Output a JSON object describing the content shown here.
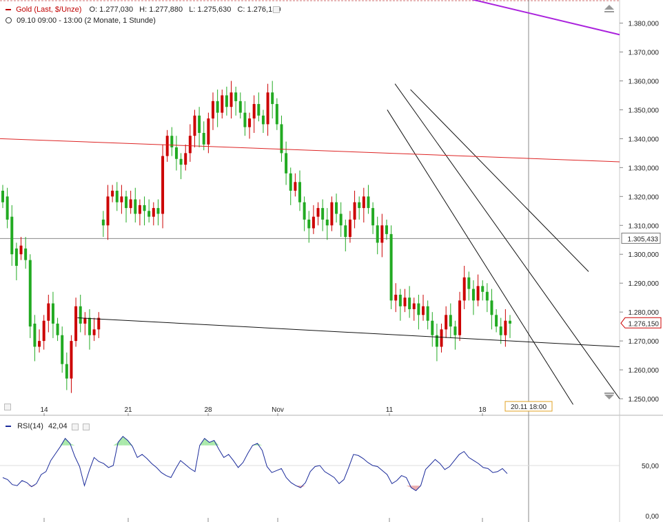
{
  "header": {
    "title": "Gold (Last, $/Unze)",
    "open": "O: 1.277,030",
    "high": "H: 1.277,880",
    "low": "L: 1.275,630",
    "close": "C: 1.276,150",
    "range": "09.10 09:00 - 13:00 (2 Monate, 1 Stunde)",
    "clock_icon": "clock-icon"
  },
  "rsi": {
    "label": "RSI(14)",
    "value": "42,04",
    "ticks": [
      "50,00",
      "0,00"
    ]
  },
  "chart_data": [
    {
      "type": "candlestick",
      "title": "Gold (Last, $/Unze)",
      "y_unit": "$/Unze",
      "ylim": [
        1245,
        1388
      ],
      "y_ticks": [
        "1.380,000",
        "1.370,000",
        "1.360,000",
        "1.350,000",
        "1.340,000",
        "1.330,000",
        "1.320,000",
        "1.310,000",
        "1.300,000",
        "1.290,000",
        "1.280,000",
        "1.270,000",
        "1.260,000",
        "1.250,000"
      ],
      "x_ticks": [
        "14",
        "21",
        "28",
        "Nov",
        "11",
        "18"
      ],
      "price_markers": {
        "horizontal_line": "1.305,433",
        "last_price": "1.276,150"
      },
      "crosshair_label": "20.11 18:00",
      "colors": {
        "up": "#22aa22",
        "down": "#cc0000",
        "trendline": "#111111",
        "red_line": "#dd2222",
        "purple_line": "#aa22dd"
      },
      "series": [
        {
          "points": [
            [
              1318,
              1322
            ],
            [
              1312,
              1320
            ],
            [
              1300,
              1313
            ],
            [
              1296,
              1302
            ],
            [
              1303,
              1300
            ],
            [
              1298,
              1302
            ],
            [
              1275,
              1298
            ],
            [
              1268,
              1276
            ],
            [
              1270,
              1268
            ],
            [
              1277,
              1270
            ],
            [
              1283,
              1277
            ],
            [
              1276,
              1283
            ],
            [
              1272,
              1276
            ],
            [
              1262,
              1272
            ],
            [
              1257,
              1262
            ],
            [
              1270,
              1257
            ],
            [
              1282,
              1270
            ],
            [
              1276,
              1282
            ],
            [
              1278,
              1276
            ],
            [
              1272,
              1278
            ],
            [
              1274,
              1272
            ],
            [
              1278,
              1274
            ],
            [
              1310,
              1312
            ],
            [
              1320,
              1310
            ],
            [
              1322,
              1320
            ],
            [
              1318,
              1322
            ],
            [
              1320,
              1318
            ],
            [
              1316,
              1320
            ],
            [
              1319,
              1316
            ],
            [
              1314,
              1319
            ],
            [
              1317,
              1314
            ],
            [
              1315,
              1317
            ],
            [
              1313,
              1315
            ],
            [
              1316,
              1313
            ],
            [
              1314,
              1316
            ],
            [
              1334,
              1314
            ],
            [
              1341,
              1334
            ],
            [
              1337,
              1341
            ],
            [
              1333,
              1337
            ],
            [
              1331,
              1333
            ],
            [
              1335,
              1331
            ],
            [
              1341,
              1335
            ],
            [
              1348,
              1341
            ],
            [
              1342,
              1348
            ],
            [
              1338,
              1342
            ],
            [
              1347,
              1338
            ],
            [
              1353,
              1347
            ],
            [
              1349,
              1353
            ],
            [
              1355,
              1349
            ],
            [
              1351,
              1355
            ],
            [
              1356,
              1351
            ],
            [
              1353,
              1356
            ],
            [
              1349,
              1353
            ],
            [
              1344,
              1349
            ],
            [
              1347,
              1344
            ],
            [
              1352,
              1347
            ],
            [
              1348,
              1352
            ],
            [
              1345,
              1348
            ],
            [
              1356,
              1345
            ],
            [
              1352,
              1356
            ],
            [
              1345,
              1352
            ],
            [
              1335,
              1345
            ],
            [
              1328,
              1335
            ],
            [
              1322,
              1328
            ],
            [
              1325,
              1322
            ],
            [
              1318,
              1325
            ],
            [
              1312,
              1318
            ],
            [
              1309,
              1312
            ],
            [
              1313,
              1309
            ],
            [
              1316,
              1313
            ],
            [
              1312,
              1316
            ],
            [
              1310,
              1312
            ],
            [
              1318,
              1310
            ],
            [
              1314,
              1318
            ],
            [
              1310,
              1314
            ],
            [
              1306,
              1310
            ],
            [
              1312,
              1306
            ],
            [
              1318,
              1312
            ],
            [
              1316,
              1318
            ],
            [
              1320,
              1316
            ],
            [
              1316,
              1320
            ],
            [
              1310,
              1316
            ],
            [
              1304,
              1310
            ],
            [
              1310,
              1304
            ],
            [
              1307,
              1310
            ],
            [
              1284,
              1307
            ],
            [
              1286,
              1284
            ],
            [
              1282,
              1286
            ],
            [
              1285,
              1282
            ],
            [
              1281,
              1285
            ],
            [
              1283,
              1281
            ],
            [
              1279,
              1283
            ],
            [
              1282,
              1279
            ],
            [
              1277,
              1282
            ],
            [
              1272,
              1277
            ],
            [
              1268,
              1272
            ],
            [
              1274,
              1268
            ],
            [
              1279,
              1274
            ],
            [
              1275,
              1279
            ],
            [
              1272,
              1275
            ],
            [
              1284,
              1272
            ],
            [
              1292,
              1284
            ],
            [
              1288,
              1292
            ],
            [
              1284,
              1288
            ],
            [
              1289,
              1284
            ],
            [
              1287,
              1289
            ],
            [
              1284,
              1287
            ],
            [
              1279,
              1284
            ],
            [
              1275,
              1279
            ],
            [
              1272,
              1275
            ],
            [
              1277,
              1272
            ],
            [
              1276,
              1277
            ]
          ]
        }
      ],
      "annotations": [
        {
          "name": "upper-channel-line",
          "from": [
            53,
            1357
          ],
          "to": [
            76,
            1294
          ]
        },
        {
          "name": "channel-upper-line",
          "from": [
            51,
            1359
          ],
          "to": [
            80,
            1250
          ]
        },
        {
          "name": "channel-lower-line",
          "from": [
            50,
            1350
          ],
          "to": [
            74,
            1248
          ]
        },
        {
          "name": "support-trendline",
          "from": [
            10,
            1278
          ],
          "to": [
            80,
            1268
          ]
        },
        {
          "name": "red-trendline",
          "from": [
            0,
            1340
          ],
          "to": [
            80,
            1332
          ]
        },
        {
          "name": "purple-trendline",
          "from": [
            55,
            1392
          ],
          "to": [
            80,
            1376
          ]
        }
      ]
    },
    {
      "type": "line",
      "title": "RSI(14)",
      "ylim": [
        0,
        100
      ],
      "y_ticks": [
        "50,00",
        "0,00"
      ],
      "series": [
        {
          "name": "RSI(14)",
          "values": [
            38,
            36,
            31,
            30,
            35,
            33,
            29,
            32,
            41,
            44,
            55,
            62,
            69,
            77,
            72,
            59,
            49,
            30,
            45,
            58,
            54,
            52,
            48,
            50,
            73,
            79,
            75,
            69,
            58,
            61,
            57,
            52,
            48,
            43,
            40,
            38,
            47,
            55,
            51,
            47,
            44,
            70,
            77,
            73,
            75,
            66,
            58,
            61,
            55,
            48,
            53,
            62,
            70,
            72,
            65,
            49,
            43,
            45,
            47,
            38,
            33,
            30,
            28,
            33,
            44,
            49,
            50,
            44,
            41,
            38,
            32,
            36,
            48,
            61,
            60,
            57,
            53,
            50,
            49,
            45,
            41,
            32,
            35,
            40,
            38,
            28,
            25,
            30,
            46,
            51,
            56,
            52,
            46,
            49,
            55,
            61,
            64,
            58,
            55,
            52,
            48,
            47,
            43,
            44,
            47,
            42
          ]
        }
      ]
    }
  ]
}
